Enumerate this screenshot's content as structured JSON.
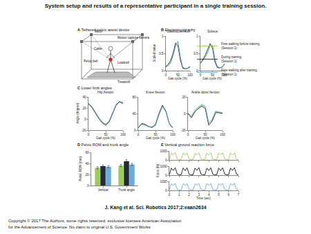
{
  "title": "System setup and results of a representative participant in a single training session.",
  "citation": "J. Kang et al. Sci. Robotics 2017;2:eaan2634",
  "copyright": [
    "Copyright © 2017 The Authors, some rights reserved, exclusive licensee American Association",
    "for the Advancement of Science. No claim to original U.S. Government Works"
  ],
  "diagram": {
    "panel": "A",
    "heading": "Tethered pelvic assist device",
    "labels": [
      "Motor",
      "Motion capture camera",
      "Cable",
      "Pelvic belt",
      "Loadcell",
      "Treadmill"
    ]
  },
  "panels": [
    {
      "panel": "B",
      "heading": "Electromyography"
    },
    {
      "panel": "C",
      "heading": "Lower limb angles"
    },
    {
      "panel": "D",
      "heading": "Pelvic ROM and trunk angle"
    },
    {
      "panel": "E",
      "heading": "Vertical ground reaction force"
    }
  ],
  "chart_data": [
    {
      "type": "line",
      "title": "Gastrocnemius",
      "x_label": "Gait cycle (%)",
      "y_label": "Scaled value",
      "legend": "upper right",
      "x": [
        0,
        10,
        20,
        30,
        40,
        50,
        60,
        70,
        80,
        90,
        100
      ],
      "xlim": [
        0,
        100
      ],
      "xticks": [
        0,
        50,
        100
      ],
      "ylim": [
        0,
        1
      ],
      "yticks": [
        0,
        0.5,
        1
      ],
      "series": [
        {
          "name": "Free walking before training (Session 1)",
          "color": "#9acd5a",
          "values": [
            0.1,
            0.15,
            0.25,
            0.45,
            0.75,
            0.8,
            0.35,
            0.08,
            0.05,
            0.06,
            0.1
          ]
        },
        {
          "name": "During training (Session 1)",
          "color": "#222a3a",
          "values": [
            0.12,
            0.18,
            0.3,
            0.5,
            0.8,
            0.72,
            0.3,
            0.07,
            0.05,
            0.07,
            0.12
          ]
        },
        {
          "name": "Free walking after training (Session 1)",
          "color": "#6aaed6",
          "values": [
            0.1,
            0.14,
            0.22,
            0.42,
            0.7,
            0.85,
            0.4,
            0.1,
            0.06,
            0.06,
            0.1
          ]
        }
      ]
    },
    {
      "type": "line",
      "title": "Soleus",
      "x_label": "Gait cycle (%)",
      "x": [
        0,
        10,
        20,
        30,
        40,
        50,
        60,
        70,
        80,
        90,
        100
      ],
      "xlim": [
        0,
        100
      ],
      "xticks": [
        0,
        50,
        100
      ],
      "ylim": [
        0,
        1
      ],
      "yticks": [
        0,
        0.5,
        1
      ],
      "series": [
        {
          "name": "Free walking before training (Session 1)",
          "color": "#9acd5a",
          "values": [
            0.2,
            0.3,
            0.4,
            0.55,
            0.75,
            0.7,
            0.3,
            0.1,
            0.08,
            0.1,
            0.18
          ]
        },
        {
          "name": "During training (Session 1)",
          "color": "#222a3a",
          "values": [
            0.22,
            0.32,
            0.45,
            0.6,
            0.78,
            0.65,
            0.25,
            0.09,
            0.08,
            0.1,
            0.2
          ]
        },
        {
          "name": "Free walking after training (Session 1)",
          "color": "#6aaed6",
          "values": [
            0.2,
            0.28,
            0.38,
            0.52,
            0.72,
            0.74,
            0.35,
            0.12,
            0.09,
            0.1,
            0.18
          ]
        }
      ]
    },
    {
      "type": "line",
      "title": "Hip flexion",
      "x_label": "Gait cycle (%)",
      "y_label": "Angle (degree)",
      "x": [
        0,
        10,
        20,
        30,
        40,
        50,
        60,
        70,
        80,
        90,
        100
      ],
      "xlim": [
        0,
        100
      ],
      "xticks": [
        0,
        50,
        100
      ],
      "ylim": [
        -20,
        40
      ],
      "yticks": [
        -20,
        0,
        20,
        40
      ],
      "series": [
        {
          "name": "Free walking before training (Session 1)",
          "color": "#9acd5a",
          "values": [
            28,
            22,
            12,
            2,
            -6,
            -10,
            -4,
            12,
            26,
            32,
            29
          ]
        },
        {
          "name": "During training (Session 1)",
          "color": "#222a3a",
          "values": [
            27,
            21,
            11,
            1,
            -7,
            -11,
            -5,
            11,
            25,
            31,
            28
          ]
        },
        {
          "name": "Free walking after training (Session 1)",
          "color": "#6aaed6",
          "values": [
            29,
            23,
            13,
            3,
            -5,
            -9,
            -3,
            13,
            27,
            32,
            30
          ]
        }
      ]
    },
    {
      "type": "line",
      "title": "Knee flexion",
      "x_label": "Gait cycle (%)",
      "x": [
        0,
        10,
        20,
        30,
        40,
        50,
        60,
        70,
        80,
        90,
        100
      ],
      "xlim": [
        0,
        100
      ],
      "xticks": [
        0,
        50,
        100
      ],
      "ylim": [
        0,
        80
      ],
      "yticks": [
        0,
        40,
        80
      ],
      "series": [
        {
          "name": "Free walking before training (Session 1)",
          "color": "#9acd5a",
          "values": [
            5,
            15,
            13,
            8,
            6,
            12,
            38,
            58,
            45,
            15,
            5
          ]
        },
        {
          "name": "During training (Session 1)",
          "color": "#222a3a",
          "values": [
            6,
            16,
            14,
            9,
            7,
            14,
            40,
            60,
            46,
            16,
            6
          ]
        },
        {
          "name": "Free walking after training (Session 1)",
          "color": "#6aaed6",
          "values": [
            5,
            14,
            12,
            8,
            6,
            11,
            36,
            57,
            44,
            14,
            5
          ]
        }
      ]
    },
    {
      "type": "line",
      "title": "Ankle dorsi flexion",
      "x_label": "Gait cycle (%)",
      "x": [
        0,
        10,
        20,
        30,
        40,
        50,
        60,
        70,
        80,
        90,
        100
      ],
      "xlim": [
        0,
        100
      ],
      "xticks": [
        0,
        50,
        100
      ],
      "ylim": [
        -20,
        20
      ],
      "yticks": [
        -20,
        0,
        20
      ],
      "series": [
        {
          "name": "Free walking before training (Session 1)",
          "color": "#9acd5a",
          "values": [
            0,
            -4,
            3,
            7,
            10,
            8,
            -12,
            -8,
            2,
            1,
            0
          ]
        },
        {
          "name": "During training (Session 1)",
          "color": "#222a3a",
          "values": [
            0,
            -5,
            2,
            6,
            9,
            6,
            -14,
            -9,
            1,
            1,
            0
          ]
        },
        {
          "name": "Free walking after training (Session 1)",
          "color": "#6aaed6",
          "values": [
            1,
            -3,
            4,
            8,
            11,
            9,
            -11,
            -7,
            3,
            2,
            1
          ]
        }
      ]
    },
    {
      "type": "bar",
      "y_label": "Pelvic ROM (mm)",
      "categories": [
        "Vertical",
        "Trunk angle"
      ],
      "ylim": [
        0,
        60
      ],
      "yticks": [
        0,
        20,
        40,
        60
      ],
      "series": [
        {
          "name": "Free walking before training (Session 1)",
          "color": "#9acd5a",
          "values": [
            32,
            36
          ],
          "errors": [
            2,
            2
          ]
        },
        {
          "name": "During training (Session 1)",
          "color": "#222a3a",
          "values": [
            35,
            44
          ],
          "errors": [
            2,
            3
          ]
        },
        {
          "name": "Free walking after training (Session 1)",
          "color": "#6aaed6",
          "values": [
            34,
            38
          ],
          "errors": [
            2,
            2
          ]
        }
      ]
    },
    {
      "type": "line",
      "tick_labels": "y",
      "x": [
        0,
        0.2,
        0.4,
        0.6,
        0.8,
        1,
        1.2,
        1.4,
        1.6,
        1.8,
        2,
        2.2,
        2.4,
        2.6,
        2.8,
        3,
        3.2,
        3.4,
        3.6,
        3.8,
        4,
        4.2,
        4.4,
        4.6,
        4.8,
        5,
        5.2,
        5.4,
        5.6,
        5.8,
        6,
        6.2,
        6.4,
        6.6,
        6.8,
        7
      ],
      "xlim": [
        0,
        7
      ],
      "xticks": [
        0,
        1,
        2,
        3,
        4,
        5,
        6,
        7
      ],
      "ylim": [
        0,
        1000
      ],
      "yticks": [
        0,
        1000
      ],
      "series": [
        {
          "color": "#9acd5a",
          "values": [
            50,
            750,
            560,
            790,
            120,
            40,
            60,
            760,
            550,
            780,
            110,
            40,
            50,
            740,
            570,
            800,
            120,
            50,
            60,
            760,
            540,
            790,
            100,
            40,
            50,
            750,
            560,
            780,
            120,
            50,
            60,
            770,
            550,
            790,
            110,
            40
          ]
        }
      ]
    },
    {
      "type": "line",
      "tick_labels": "y",
      "y_label": "Force (N)",
      "x": [
        0,
        0.2,
        0.4,
        0.6,
        0.8,
        1,
        1.2,
        1.4,
        1.6,
        1.8,
        2,
        2.2,
        2.4,
        2.6,
        2.8,
        3,
        3.2,
        3.4,
        3.6,
        3.8,
        4,
        4.2,
        4.4,
        4.6,
        4.8,
        5,
        5.2,
        5.4,
        5.6,
        5.8,
        6,
        6.2,
        6.4,
        6.6,
        6.8,
        7
      ],
      "xlim": [
        0,
        7
      ],
      "xticks": [
        0,
        1,
        2,
        3,
        4,
        5,
        6,
        7
      ],
      "ylim": [
        0,
        1000
      ],
      "yticks": [
        0,
        1000
      ],
      "series": [
        {
          "color": "#111111",
          "values": [
            40,
            780,
            520,
            820,
            130,
            50,
            50,
            790,
            510,
            810,
            120,
            40,
            40,
            770,
            530,
            830,
            130,
            50,
            50,
            780,
            520,
            820,
            120,
            40,
            40,
            790,
            510,
            810,
            130,
            50,
            50,
            780,
            520,
            830,
            120,
            40
          ]
        }
      ]
    },
    {
      "type": "line",
      "x_label": "Time (sec)",
      "x": [
        0,
        0.2,
        0.4,
        0.6,
        0.8,
        1,
        1.2,
        1.4,
        1.6,
        1.8,
        2,
        2.2,
        2.4,
        2.6,
        2.8,
        3,
        3.2,
        3.4,
        3.6,
        3.8,
        4,
        4.2,
        4.4,
        4.6,
        4.8,
        5,
        5.2,
        5.4,
        5.6,
        5.8,
        6,
        6.2,
        6.4,
        6.6,
        6.8,
        7
      ],
      "xlim": [
        0,
        7
      ],
      "xticks": [
        0,
        1,
        2,
        3,
        4,
        5,
        6,
        7
      ],
      "ylim": [
        0,
        1000
      ],
      "yticks": [
        0,
        1000
      ],
      "series": [
        {
          "color": "#6aaed6",
          "values": [
            60,
            730,
            580,
            770,
            110,
            40,
            50,
            740,
            570,
            760,
            120,
            50,
            60,
            720,
            590,
            780,
            110,
            40,
            50,
            740,
            580,
            770,
            100,
            40,
            60,
            730,
            570,
            760,
            120,
            50,
            50,
            750,
            580,
            770,
            110,
            40
          ]
        }
      ]
    }
  ]
}
